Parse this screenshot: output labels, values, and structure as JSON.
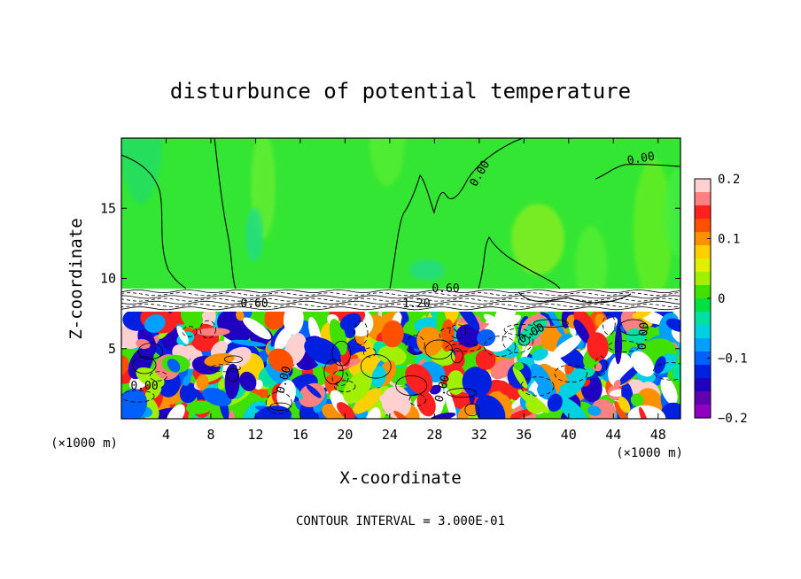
{
  "chart_data": {
    "type": "heatmap",
    "title": "disturbunce of potential temperature",
    "xlabel": "X-coordinate",
    "ylabel": "Z-coordinate",
    "x_unit": "(×1000 m)",
    "z_unit": "(×1000 m)",
    "xlim": [
      0,
      50
    ],
    "ylim": [
      0,
      20
    ],
    "x_ticks": [
      4,
      8,
      12,
      16,
      20,
      24,
      28,
      32,
      36,
      40,
      44,
      48
    ],
    "y_ticks": [
      5,
      10,
      15
    ],
    "colorbar": {
      "range": [
        -0.2,
        0.2
      ],
      "tick_values": [
        0.2,
        0.1,
        0,
        -0.1,
        -0.2
      ],
      "tick_labels": [
        "0.2",
        "0.1",
        "0",
        "−0.1",
        "−0.2"
      ],
      "colors": [
        "#ffd0d0",
        "#ff8080",
        "#ff2020",
        "#ff5000",
        "#ff9000",
        "#ffd000",
        "#e0f000",
        "#a0f000",
        "#40e000",
        "#00e040",
        "#00e0a0",
        "#00d0e0",
        "#00a0ff",
        "#0060ff",
        "#0020e0",
        "#2000c0",
        "#6000b0",
        "#9000c0"
      ]
    },
    "contour_labels": [
      "0.00",
      "0.00",
      "0.60",
      "0.60",
      "1.20",
      "0.00",
      "0.00",
      "0.00",
      "0.00",
      "0.00"
    ],
    "contour_interval_text": "CONTOUR INTERVAL = 3.000E-01",
    "grid": false
  }
}
